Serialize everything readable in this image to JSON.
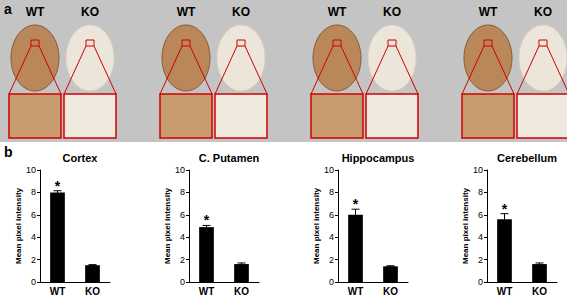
{
  "panel_a": {
    "label": "a",
    "groups": [
      {
        "images": [
          "WT",
          "KO"
        ]
      },
      {
        "images": [
          "WT",
          "KO"
        ]
      },
      {
        "images": [
          "WT",
          "KO"
        ]
      },
      {
        "images": [
          "WT",
          "KO"
        ]
      }
    ]
  },
  "panel_b_label": "b",
  "chart_data": [
    {
      "type": "bar",
      "title": "Cortex",
      "y_label": "Mean pixel intensity",
      "categories": [
        "WT",
        "KO"
      ],
      "values": [
        8.0,
        1.5
      ],
      "errors": [
        0.15,
        0.05
      ],
      "color": "#000000",
      "ylim": [
        0,
        10
      ],
      "yticks": [
        0,
        2,
        4,
        6,
        8,
        10
      ],
      "grid": false,
      "annotations": [
        {
          "category": "WT",
          "text": "*"
        }
      ]
    },
    {
      "type": "bar",
      "title": "C. Putamen",
      "y_label": "Mean pixel intensity",
      "categories": [
        "WT",
        "KO"
      ],
      "values": [
        4.9,
        1.6
      ],
      "errors": [
        0.15,
        0.1
      ],
      "color": "#000000",
      "ylim": [
        0,
        10
      ],
      "yticks": [
        0,
        2,
        4,
        6,
        8,
        10
      ],
      "grid": false,
      "annotations": [
        {
          "category": "WT",
          "text": "*"
        }
      ]
    },
    {
      "type": "bar",
      "title": "Hippocampus",
      "y_label": "Mean pixel intensity",
      "categories": [
        "WT",
        "KO"
      ],
      "values": [
        6.0,
        1.4
      ],
      "errors": [
        0.5,
        0.05
      ],
      "color": "#000000",
      "ylim": [
        0,
        10
      ],
      "yticks": [
        0,
        2,
        4,
        6,
        8,
        10
      ],
      "grid": false,
      "annotations": [
        {
          "category": "WT",
          "text": "*"
        }
      ]
    },
    {
      "type": "bar",
      "title": "Cerebellum",
      "y_label": "Mean pixel intensity",
      "categories": [
        "WT",
        "KO"
      ],
      "values": [
        5.6,
        1.6
      ],
      "errors": [
        0.5,
        0.1
      ],
      "color": "#000000",
      "ylim": [
        0,
        10
      ],
      "yticks": [
        0,
        2,
        4,
        6,
        8,
        10
      ],
      "grid": false,
      "annotations": [
        {
          "category": "WT",
          "text": "*"
        }
      ]
    }
  ]
}
